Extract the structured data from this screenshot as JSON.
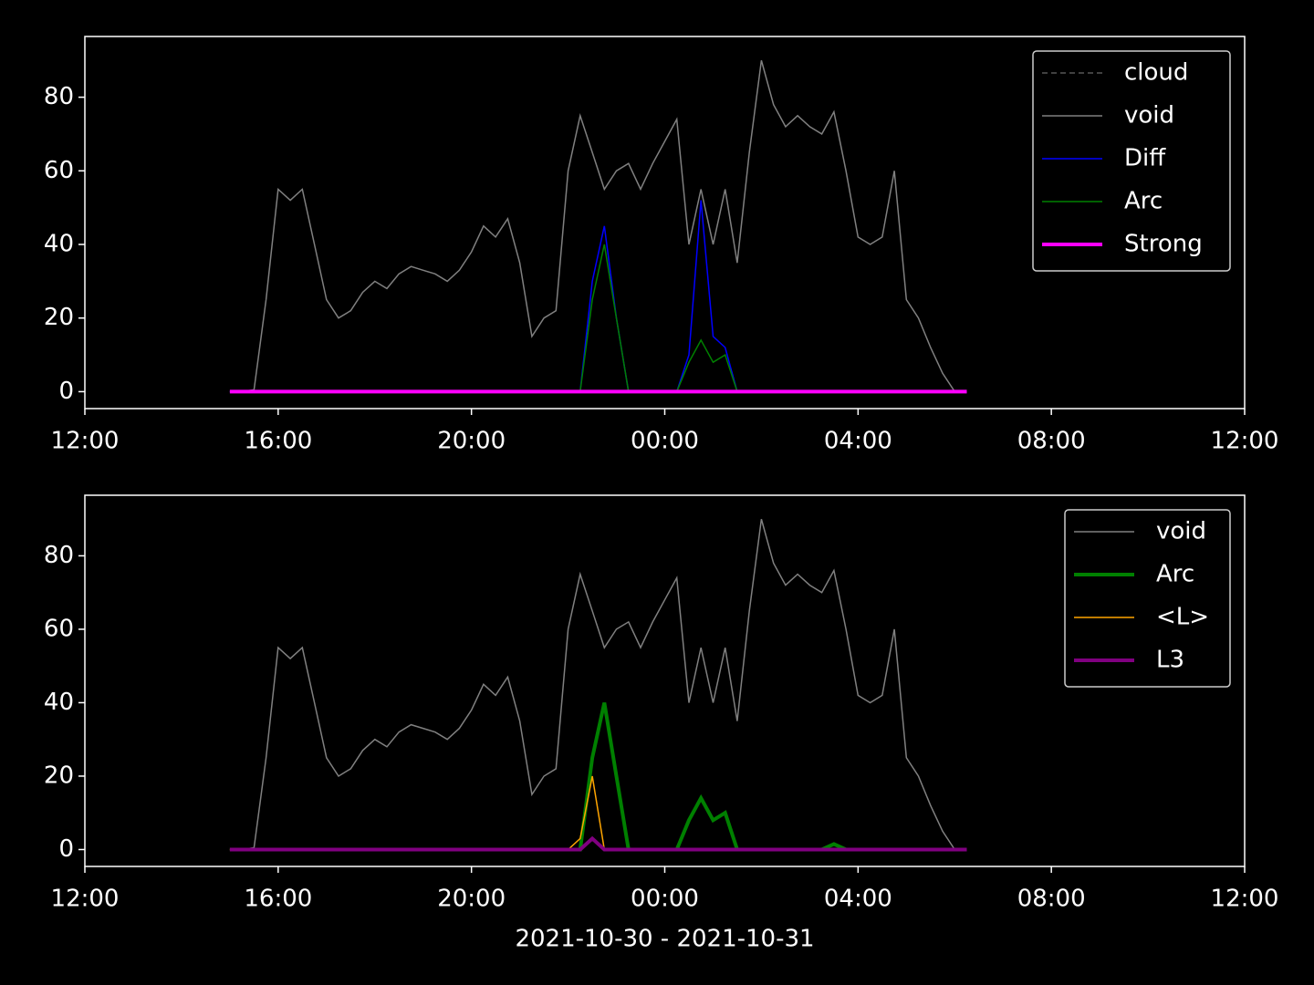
{
  "chart_data": [
    {
      "type": "line",
      "legend": "upper right",
      "x": [
        15.0,
        15.25,
        15.5,
        15.75,
        16.0,
        16.25,
        16.5,
        16.75,
        17.0,
        17.25,
        17.5,
        17.75,
        18.0,
        18.25,
        18.5,
        18.75,
        19.0,
        19.25,
        19.5,
        19.75,
        20.0,
        20.25,
        20.5,
        20.75,
        21.0,
        21.25,
        21.5,
        21.75,
        22.0,
        22.25,
        22.5,
        22.75,
        23.0,
        23.25,
        23.5,
        23.75,
        24.0,
        24.25,
        24.5,
        24.75,
        25.0,
        25.25,
        25.5,
        25.75,
        26.0,
        26.25,
        26.5,
        26.75,
        27.0,
        27.25,
        27.5,
        27.75,
        28.0,
        28.25,
        28.5,
        28.75,
        29.0,
        29.25,
        29.5,
        29.75,
        30.0,
        30.25
      ],
      "xlim": [
        12,
        36
      ],
      "xticks": [
        {
          "value": 12,
          "label": "12:00"
        },
        {
          "value": 16,
          "label": "16:00"
        },
        {
          "value": 20,
          "label": "20:00"
        },
        {
          "value": 24,
          "label": "00:00"
        },
        {
          "value": 28,
          "label": "04:00"
        },
        {
          "value": 32,
          "label": "08:00"
        },
        {
          "value": 36,
          "label": "12:00"
        }
      ],
      "ylim": [
        -4.6,
        96.5
      ],
      "yticks": [
        0,
        20,
        40,
        60,
        80
      ],
      "series": [
        {
          "name": "cloud",
          "color": "#808080",
          "linestyle": "dashed",
          "linewidth": 1,
          "values": [
            0,
            0,
            0,
            0,
            0,
            0,
            0,
            0,
            0,
            0,
            0,
            0,
            0,
            0,
            0,
            0,
            0,
            0,
            0,
            0,
            0,
            0,
            0,
            0,
            0,
            0,
            0,
            0,
            0,
            0,
            0,
            0,
            0,
            0,
            0,
            0,
            0,
            0,
            0,
            0,
            0,
            0,
            0,
            0,
            0,
            0,
            0,
            0,
            0,
            0,
            0,
            0,
            0,
            0,
            0,
            0,
            0,
            0,
            0,
            0,
            0,
            0
          ]
        },
        {
          "name": "void",
          "color": "#808080",
          "linestyle": "solid",
          "linewidth": 1.5,
          "values": [
            0,
            0,
            0.5,
            25,
            55,
            52,
            55,
            40,
            25,
            20,
            22,
            27,
            30,
            28,
            32,
            34,
            33,
            32,
            30,
            33,
            38,
            45,
            42,
            47,
            35,
            15,
            20,
            22,
            60,
            75,
            65,
            55,
            60,
            62,
            55,
            62,
            68,
            74,
            40,
            55,
            40,
            55,
            35,
            65,
            90,
            78,
            72,
            75,
            72,
            70,
            76,
            60,
            42,
            40,
            42,
            60,
            25,
            20,
            12,
            5,
            0,
            0
          ]
        },
        {
          "name": "Diff",
          "color": "#0000ff",
          "linestyle": "solid",
          "linewidth": 1.5,
          "values": [
            0,
            0,
            0,
            0,
            0,
            0,
            0,
            0,
            0,
            0,
            0,
            0,
            0,
            0,
            0,
            0,
            0,
            0,
            0,
            0,
            0,
            0,
            0,
            0,
            0,
            0,
            0,
            0,
            0,
            0,
            30,
            45,
            20,
            0,
            0,
            0,
            0,
            0,
            10,
            52,
            15,
            12,
            0,
            0,
            0,
            0,
            0,
            0,
            0,
            0,
            0,
            0,
            0,
            0,
            0,
            0,
            0,
            0,
            0,
            0,
            0,
            0
          ]
        },
        {
          "name": "Arc",
          "color": "#008000",
          "linestyle": "solid",
          "linewidth": 1.5,
          "values": [
            0,
            0,
            0,
            0,
            0,
            0,
            0,
            0,
            0,
            0,
            0,
            0,
            0,
            0,
            0,
            0,
            0,
            0,
            0,
            0,
            0,
            0,
            0,
            0,
            0,
            0,
            0,
            0,
            0,
            0,
            25,
            40,
            20,
            0,
            0,
            0,
            0,
            0,
            8,
            14,
            8,
            10,
            0,
            0,
            0,
            0,
            0,
            0,
            0,
            0,
            0,
            0,
            0,
            0,
            0,
            0,
            0,
            0,
            0,
            0,
            0,
            0
          ]
        },
        {
          "name": "Strong",
          "color": "#ff00ff",
          "linestyle": "solid",
          "linewidth": 4,
          "values": [
            0,
            0,
            0,
            0,
            0,
            0,
            0,
            0,
            0,
            0,
            0,
            0,
            0,
            0,
            0,
            0,
            0,
            0,
            0,
            0,
            0,
            0,
            0,
            0,
            0,
            0,
            0,
            0,
            0,
            0,
            0,
            0,
            0,
            0,
            0,
            0,
            0,
            0,
            0,
            0,
            0,
            0,
            0,
            0,
            0,
            0,
            0,
            0,
            0,
            0,
            0,
            0,
            0,
            0,
            0,
            0,
            0,
            0,
            0,
            0,
            0,
            0
          ]
        }
      ]
    },
    {
      "type": "line",
      "legend": "upper right",
      "xlabel": "2021-10-30 - 2021-10-31",
      "x": [
        15.0,
        15.25,
        15.5,
        15.75,
        16.0,
        16.25,
        16.5,
        16.75,
        17.0,
        17.25,
        17.5,
        17.75,
        18.0,
        18.25,
        18.5,
        18.75,
        19.0,
        19.25,
        19.5,
        19.75,
        20.0,
        20.25,
        20.5,
        20.75,
        21.0,
        21.25,
        21.5,
        21.75,
        22.0,
        22.25,
        22.5,
        22.75,
        23.0,
        23.25,
        23.5,
        23.75,
        24.0,
        24.25,
        24.5,
        24.75,
        25.0,
        25.25,
        25.5,
        25.75,
        26.0,
        26.25,
        26.5,
        26.75,
        27.0,
        27.25,
        27.5,
        27.75,
        28.0,
        28.25,
        28.5,
        28.75,
        29.0,
        29.25,
        29.5,
        29.75,
        30.0,
        30.25
      ],
      "xlim": [
        12,
        36
      ],
      "xticks": [
        {
          "value": 12,
          "label": "12:00"
        },
        {
          "value": 16,
          "label": "16:00"
        },
        {
          "value": 20,
          "label": "20:00"
        },
        {
          "value": 24,
          "label": "00:00"
        },
        {
          "value": 28,
          "label": "04:00"
        },
        {
          "value": 32,
          "label": "08:00"
        },
        {
          "value": 36,
          "label": "12:00"
        }
      ],
      "ylim": [
        -4.6,
        96.5
      ],
      "yticks": [
        0,
        20,
        40,
        60,
        80
      ],
      "series": [
        {
          "name": "void",
          "color": "#808080",
          "linestyle": "solid",
          "linewidth": 1.5,
          "values": [
            0,
            0,
            0.5,
            25,
            55,
            52,
            55,
            40,
            25,
            20,
            22,
            27,
            30,
            28,
            32,
            34,
            33,
            32,
            30,
            33,
            38,
            45,
            42,
            47,
            35,
            15,
            20,
            22,
            60,
            75,
            65,
            55,
            60,
            62,
            55,
            62,
            68,
            74,
            40,
            55,
            40,
            55,
            35,
            65,
            90,
            78,
            72,
            75,
            72,
            70,
            76,
            60,
            42,
            40,
            42,
            60,
            25,
            20,
            12,
            5,
            0,
            0
          ]
        },
        {
          "name": "Arc",
          "color": "#008000",
          "linestyle": "solid",
          "linewidth": 4,
          "values": [
            0,
            0,
            0,
            0,
            0,
            0,
            0,
            0,
            0,
            0,
            0,
            0,
            0,
            0,
            0,
            0,
            0,
            0,
            0,
            0,
            0,
            0,
            0,
            0,
            0,
            0,
            0,
            0,
            0,
            0,
            25,
            40,
            20,
            0,
            0,
            0,
            0,
            0,
            8,
            14,
            8,
            10,
            0,
            0,
            0,
            0,
            0,
            0,
            0,
            0,
            1.5,
            0,
            0,
            0,
            0,
            0,
            0,
            0,
            0,
            0,
            0,
            0
          ]
        },
        {
          "name": "<L>",
          "color": "#ffa500",
          "linestyle": "solid",
          "linewidth": 1.5,
          "values": [
            0,
            0,
            0,
            0,
            0,
            0,
            0,
            0,
            0,
            0,
            0,
            0,
            0,
            0,
            0,
            0,
            0,
            0,
            0,
            0,
            0,
            0,
            0,
            0,
            0,
            0,
            0,
            0,
            0,
            3,
            20,
            0,
            0,
            0,
            0,
            0,
            0,
            0,
            0,
            0,
            0,
            0,
            0,
            0,
            0,
            0,
            0,
            0,
            0,
            0,
            0,
            0,
            0,
            0,
            0,
            0,
            0,
            0,
            0,
            0,
            0,
            0
          ]
        },
        {
          "name": "L3",
          "color": "#800080",
          "linestyle": "solid",
          "linewidth": 4,
          "values": [
            0,
            0,
            0,
            0,
            0,
            0,
            0,
            0,
            0,
            0,
            0,
            0,
            0,
            0,
            0,
            0,
            0,
            0,
            0,
            0,
            0,
            0,
            0,
            0,
            0,
            0,
            0,
            0,
            0,
            0,
            3,
            0,
            0,
            0,
            0,
            0,
            0,
            0,
            0,
            0,
            0,
            0,
            0,
            0,
            0,
            0,
            0,
            0,
            0,
            0,
            0,
            0,
            0,
            0,
            0,
            0,
            0,
            0,
            0,
            0,
            0,
            0
          ]
        }
      ]
    }
  ]
}
